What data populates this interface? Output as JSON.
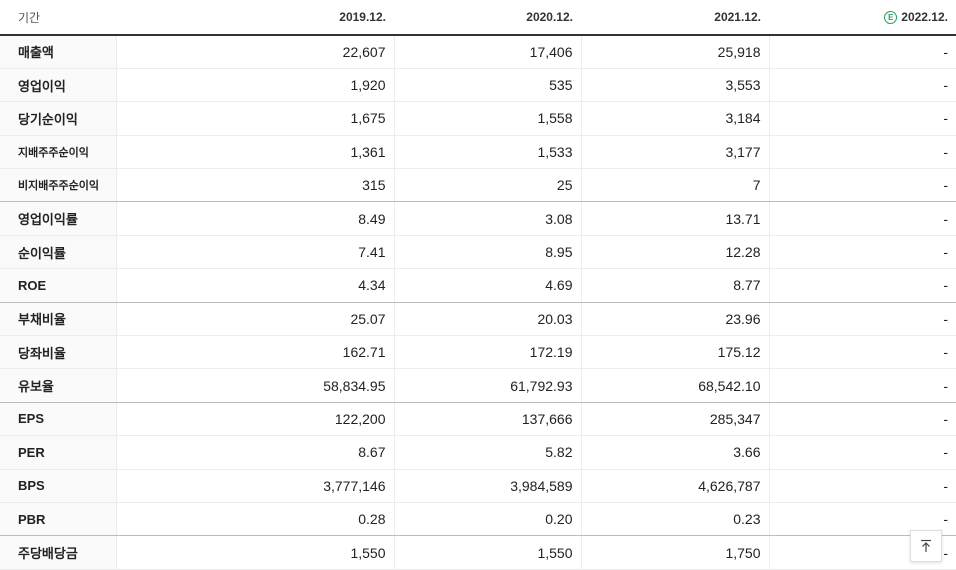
{
  "table": {
    "header_label": "기간",
    "estimate_badge": "E",
    "periods": [
      "2019.12.",
      "2020.12.",
      "2021.12.",
      "2022.12."
    ],
    "rows": [
      {
        "label": "매출액",
        "values": [
          "22,607",
          "17,406",
          "25,918",
          "-"
        ]
      },
      {
        "label": "영업이익",
        "values": [
          "1,920",
          "535",
          "3,553",
          "-"
        ]
      },
      {
        "label": "당기순이익",
        "values": [
          "1,675",
          "1,558",
          "3,184",
          "-"
        ]
      },
      {
        "label": "지배주주순이익",
        "values": [
          "1,361",
          "1,533",
          "3,177",
          "-"
        ]
      },
      {
        "label": "비지배주주순이익",
        "values": [
          "315",
          "25",
          "7",
          "-"
        ]
      },
      {
        "label": "영업이익률",
        "values": [
          "8.49",
          "3.08",
          "13.71",
          "-"
        ]
      },
      {
        "label": "순이익률",
        "values": [
          "7.41",
          "8.95",
          "12.28",
          "-"
        ]
      },
      {
        "label": "ROE",
        "values": [
          "4.34",
          "4.69",
          "8.77",
          "-"
        ]
      },
      {
        "label": "부채비율",
        "values": [
          "25.07",
          "20.03",
          "23.96",
          "-"
        ]
      },
      {
        "label": "당좌비율",
        "values": [
          "162.71",
          "172.19",
          "175.12",
          "-"
        ]
      },
      {
        "label": "유보율",
        "values": [
          "58,834.95",
          "61,792.93",
          "68,542.10",
          "-"
        ]
      },
      {
        "label": "EPS",
        "values": [
          "122,200",
          "137,666",
          "285,347",
          "-"
        ]
      },
      {
        "label": "PER",
        "values": [
          "8.67",
          "5.82",
          "3.66",
          "-"
        ]
      },
      {
        "label": "BPS",
        "values": [
          "3,777,146",
          "3,984,589",
          "4,626,787",
          "-"
        ]
      },
      {
        "label": "PBR",
        "values": [
          "0.28",
          "0.20",
          "0.23",
          "-"
        ]
      },
      {
        "label": "주당배당금",
        "values": [
          "1,550",
          "1,550",
          "1,750",
          "-"
        ]
      }
    ]
  },
  "scroll_top_icon": "arrow-up-to-line-icon"
}
